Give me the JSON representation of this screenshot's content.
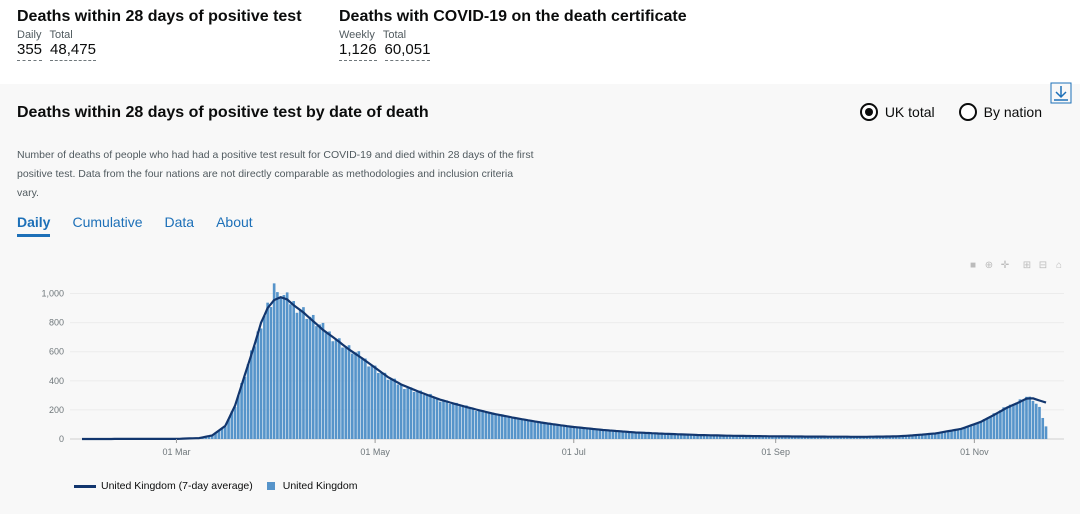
{
  "headlines": {
    "left": {
      "title": "Deaths within 28 days of positive test",
      "sub1": "Daily",
      "sub2": "Total",
      "val1": "355",
      "val2": "48,475"
    },
    "right": {
      "title": "Deaths with COVID-19 on the death certificate",
      "sub1": "Weekly",
      "sub2": "Total",
      "val1": "1,126",
      "val2": "60,051"
    }
  },
  "card": {
    "title": "Deaths within 28 days of positive test by date of death",
    "description": "Number of deaths of people who had had a positive test result for COVID-19 and died within 28 days of the first positive test. Data from the four nations are not directly comparable as methodologies and inclusion criteria vary.",
    "radio_uk": "UK total",
    "radio_nation": "By nation",
    "tabs": [
      "Daily",
      "Cumulative",
      "Data",
      "About"
    ]
  },
  "legend": {
    "line": "United Kingdom (7-day average)",
    "bar": "United Kingdom"
  },
  "colors": {
    "bar": "#5694ca",
    "line": "#12366e",
    "accent": "#1d70b8"
  },
  "chart_data": {
    "type": "bar",
    "title": "Deaths within 28 days of positive test by date of death",
    "x_tick_labels": [
      "01 Mar",
      "01 May",
      "01 Jul",
      "01 Sep",
      "01 Nov"
    ],
    "y_tick_labels": [
      "0",
      "200",
      "400",
      "600",
      "800",
      "1,000"
    ],
    "ylim": [
      0,
      1100
    ],
    "series": [
      {
        "name": "United Kingdom",
        "kind": "bar",
        "anchor_days": [
          0,
          29,
          36,
          40,
          44,
          47,
          50,
          53,
          55,
          57,
          59,
          61,
          63,
          65,
          68,
          71,
          74,
          78,
          82,
          86,
          90,
          94,
          98,
          104,
          110,
          118,
          126,
          134,
          142,
          150,
          160,
          170,
          180,
          190,
          200,
          210,
          220,
          230,
          240,
          250,
          255,
          262,
          270,
          276,
          280,
          284,
          288,
          290,
          292,
          294,
          296
        ],
        "anchor_values": [
          0,
          1,
          6,
          25,
          90,
          230,
          440,
          650,
          800,
          910,
          980,
          1000,
          960,
          930,
          880,
          820,
          760,
          690,
          620,
          560,
          490,
          420,
          370,
          320,
          270,
          220,
          175,
          140,
          110,
          85,
          62,
          45,
          35,
          27,
          22,
          19,
          17,
          16,
          15,
          18,
          25,
          38,
          70,
          120,
          170,
          220,
          265,
          290,
          270,
          210,
          85
        ]
      },
      {
        "name": "United Kingdom (7-day average)",
        "kind": "line",
        "anchor_days": [
          0,
          29,
          36,
          40,
          44,
          47,
          50,
          53,
          55,
          57,
          59,
          61,
          63,
          65,
          68,
          71,
          74,
          78,
          82,
          86,
          90,
          94,
          98,
          104,
          110,
          118,
          126,
          134,
          142,
          150,
          160,
          170,
          180,
          190,
          200,
          210,
          220,
          230,
          240,
          250,
          255,
          262,
          270,
          276,
          280,
          284,
          288,
          290,
          292,
          294,
          296
        ],
        "anchor_values": [
          0,
          1,
          6,
          25,
          90,
          230,
          440,
          650,
          800,
          900,
          955,
          975,
          960,
          920,
          870,
          810,
          750,
          685,
          615,
          555,
          490,
          425,
          375,
          320,
          270,
          220,
          175,
          140,
          110,
          85,
          62,
          45,
          35,
          27,
          22,
          19,
          17,
          16,
          15,
          18,
          25,
          38,
          70,
          118,
          165,
          215,
          255,
          278,
          280,
          265,
          250
        ]
      }
    ]
  }
}
